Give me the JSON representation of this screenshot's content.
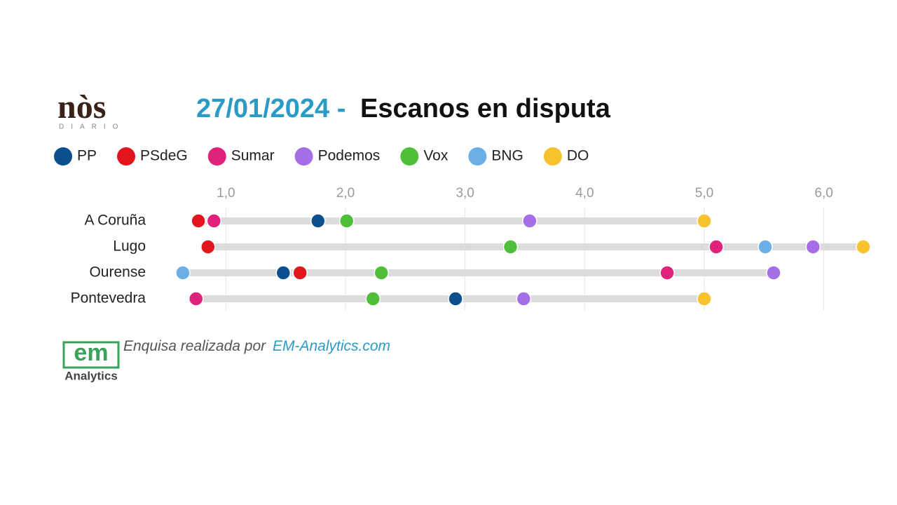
{
  "branding": {
    "logo": "nòs",
    "logo_sub": "DIARIO",
    "source_text": "Enquisa realizada por",
    "source_link": "EM-Analytics.com",
    "em_logo": "em",
    "em_sub": "Analytics"
  },
  "chart_data": {
    "type": "dot",
    "date": "27/01/2024 -",
    "title": "Escanos en disputa",
    "categories": [
      "A Coruña",
      "Lugo",
      "Ourense",
      "Pontevedra"
    ],
    "series": [
      {
        "name": "PP",
        "color": "#0b4f8f",
        "values": [
          1.77,
          null,
          1.48,
          2.92
        ]
      },
      {
        "name": "PSdeG",
        "color": "#e3161e",
        "values": [
          0.77,
          0.85,
          1.62,
          null
        ]
      },
      {
        "name": "Sumar",
        "color": "#e0237a",
        "values": [
          0.9,
          5.1,
          4.69,
          0.75
        ]
      },
      {
        "name": "Podemos",
        "color": "#a66ee6",
        "values": [
          3.54,
          5.91,
          5.58,
          3.49
        ]
      },
      {
        "name": "Vox",
        "color": "#4fbf3a",
        "values": [
          2.01,
          3.38,
          2.3,
          2.23
        ]
      },
      {
        "name": "BNG",
        "color": "#6ab0e6",
        "values": [
          null,
          5.51,
          0.64,
          null
        ]
      },
      {
        "name": "DO",
        "color": "#f8c22e",
        "values": [
          5.0,
          6.33,
          null,
          5.0
        ]
      }
    ],
    "xlim": [
      0.4,
      6.6
    ],
    "xticks": [
      {
        "value": 1,
        "label": "1,0"
      },
      {
        "value": 2,
        "label": "2,0"
      },
      {
        "value": 3,
        "label": "3,0"
      },
      {
        "value": 4,
        "label": "4,0"
      },
      {
        "value": 5,
        "label": "5,0"
      },
      {
        "value": 6,
        "label": "6,0"
      }
    ],
    "grid": true
  }
}
